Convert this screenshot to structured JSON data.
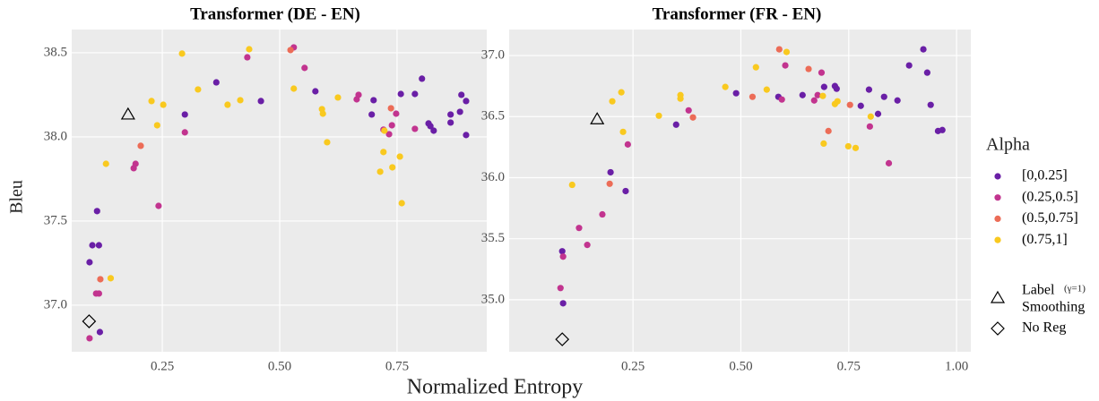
{
  "chart_data": [
    {
      "type": "scatter",
      "title": "Transformer (DE - EN)",
      "xlabel": "Normalized Entropy",
      "ylabel": "Bleu",
      "legend_title": "Alpha",
      "xlim": [
        0.057,
        0.941
      ],
      "ylim": [
        36.723,
        38.638
      ],
      "xticks": [
        {
          "value": 0.25,
          "label": "0.25"
        },
        {
          "value": 0.5,
          "label": "0.50"
        },
        {
          "value": 0.75,
          "label": "0.75"
        }
      ],
      "yticks": [
        {
          "value": 37.0,
          "label": "37.0"
        },
        37.5,
        {
          "value": 38.0,
          "label": "38.0"
        },
        38.5
      ],
      "grid": true,
      "series": [
        {
          "name": "[0,0.25]",
          "color": "#6a1fa6",
          "x": [
            0.095,
            0.101,
            0.115,
            0.111,
            0.117,
            0.298,
            0.365,
            0.46,
            0.576,
            0.7,
            0.696,
            0.758,
            0.788,
            0.803,
            0.817,
            0.821,
            0.828,
            0.864,
            0.864,
            0.884,
            0.887,
            0.897,
            0.897
          ],
          "values": [
            37.255,
            37.356,
            37.356,
            37.559,
            36.84,
            38.133,
            38.324,
            38.213,
            38.271,
            38.218,
            38.133,
            38.255,
            38.255,
            38.346,
            38.08,
            38.064,
            38.037,
            38.133,
            38.085,
            38.149,
            38.25,
            38.213,
            38.011
          ]
        },
        {
          "name": "(0.25,0.5]",
          "color": "#c2348f",
          "x": [
            0.095,
            0.109,
            0.115,
            0.189,
            0.193,
            0.242,
            0.298,
            0.431,
            0.53,
            0.553,
            0.664,
            0.668,
            0.721,
            0.733,
            0.739,
            0.748,
            0.788
          ],
          "values": [
            36.803,
            37.069,
            37.069,
            37.814,
            37.84,
            37.59,
            38.027,
            38.473,
            38.532,
            38.41,
            38.223,
            38.25,
            38.043,
            38.016,
            38.069,
            38.138,
            38.048
          ]
        },
        {
          "name": "(0.5,0.75]",
          "color": "#ec6c57",
          "x": [
            0.118,
            0.204,
            0.523,
            0.737
          ],
          "values": [
            37.154,
            37.947,
            38.516,
            38.17
          ]
        },
        {
          "name": "(0.75,1]",
          "color": "#f9c91f",
          "x": [
            0.13,
            0.14,
            0.227,
            0.239,
            0.252,
            0.292,
            0.326,
            0.389,
            0.416,
            0.435,
            0.53,
            0.59,
            0.592,
            0.601,
            0.624,
            0.714,
            0.721,
            0.723,
            0.74,
            0.756,
            0.76
          ],
          "values": [
            37.84,
            37.16,
            38.213,
            38.069,
            38.191,
            38.495,
            38.282,
            38.191,
            38.218,
            38.521,
            38.287,
            38.165,
            38.138,
            37.968,
            38.234,
            37.793,
            37.91,
            38.037,
            37.819,
            37.883,
            37.606
          ]
        }
      ],
      "markers": [
        {
          "shape": "triangle",
          "legend": [
            "Label",
            "(γ=1)",
            "Smoothing"
          ],
          "x": 0.177,
          "value": 38.133
        },
        {
          "shape": "diamond",
          "legend": [
            "No Reg"
          ],
          "x": 0.094,
          "value": 36.904
        }
      ]
    },
    {
      "type": "scatter",
      "title": "Transformer (FR - EN)",
      "xlim": [
        -0.037,
        1.033
      ],
      "ylim": [
        34.574,
        37.213
      ],
      "xticks": [
        {
          "value": 0.25,
          "label": "0.25"
        },
        {
          "value": 0.5,
          "label": "0.50"
        },
        {
          "value": 0.75,
          "label": "0.75"
        },
        {
          "value": 1.0,
          "label": "1.00"
        }
      ],
      "yticks": [
        {
          "value": 35.0,
          "label": "35.0"
        },
        35.5,
        {
          "value": 36.0,
          "label": "36.0"
        },
        36.5,
        {
          "value": 37.0,
          "label": "37.0"
        }
      ],
      "grid": true,
      "series": [
        {
          "name": "[0,0.25]",
          "color": "#6a1fa6",
          "x": [
            0.086,
            0.088,
            0.198,
            0.233,
            0.35,
            0.489,
            0.587,
            0.643,
            0.693,
            0.718,
            0.722,
            0.778,
            0.797,
            0.818,
            0.832,
            0.863,
            0.89,
            0.923,
            0.932,
            0.94,
            0.957,
            0.967
          ],
          "values": [
            35.397,
            34.971,
            36.044,
            35.89,
            36.434,
            36.691,
            36.662,
            36.676,
            36.743,
            36.75,
            36.728,
            36.588,
            36.721,
            36.522,
            36.662,
            36.632,
            36.919,
            37.051,
            36.86,
            36.596,
            36.382,
            36.39
          ]
        },
        {
          "name": "(0.25,0.5]",
          "color": "#c2348f",
          "x": [
            0.082,
            0.088,
            0.125,
            0.144,
            0.179,
            0.238,
            0.379,
            0.595,
            0.603,
            0.67,
            0.687,
            0.678,
            0.799,
            0.843
          ],
          "values": [
            35.096,
            35.353,
            35.588,
            35.449,
            35.699,
            36.272,
            36.551,
            36.64,
            36.919,
            36.632,
            36.86,
            36.676,
            36.419,
            36.118
          ]
        },
        {
          "name": "(0.5,0.75]",
          "color": "#ec6c57",
          "x": [
            0.196,
            0.389,
            0.527,
            0.589,
            0.657,
            0.703,
            0.753
          ],
          "values": [
            35.95,
            36.493,
            36.662,
            37.051,
            36.89,
            36.382,
            36.596
          ]
        },
        {
          "name": "(0.75,1]",
          "color": "#f9c91f",
          "x": [
            0.109,
            0.202,
            0.223,
            0.227,
            0.31,
            0.36,
            0.36,
            0.464,
            0.535,
            0.56,
            0.606,
            0.69,
            0.692,
            0.718,
            0.724,
            0.749,
            0.766,
            0.801
          ],
          "values": [
            35.941,
            36.625,
            36.699,
            36.375,
            36.507,
            36.676,
            36.647,
            36.743,
            36.904,
            36.721,
            37.029,
            36.669,
            36.279,
            36.603,
            36.625,
            36.257,
            36.243,
            36.5
          ]
        }
      ],
      "markers": [
        {
          "shape": "triangle",
          "x": 0.167,
          "value": 36.478
        },
        {
          "shape": "diamond",
          "x": 0.086,
          "value": 34.676
        }
      ]
    }
  ]
}
